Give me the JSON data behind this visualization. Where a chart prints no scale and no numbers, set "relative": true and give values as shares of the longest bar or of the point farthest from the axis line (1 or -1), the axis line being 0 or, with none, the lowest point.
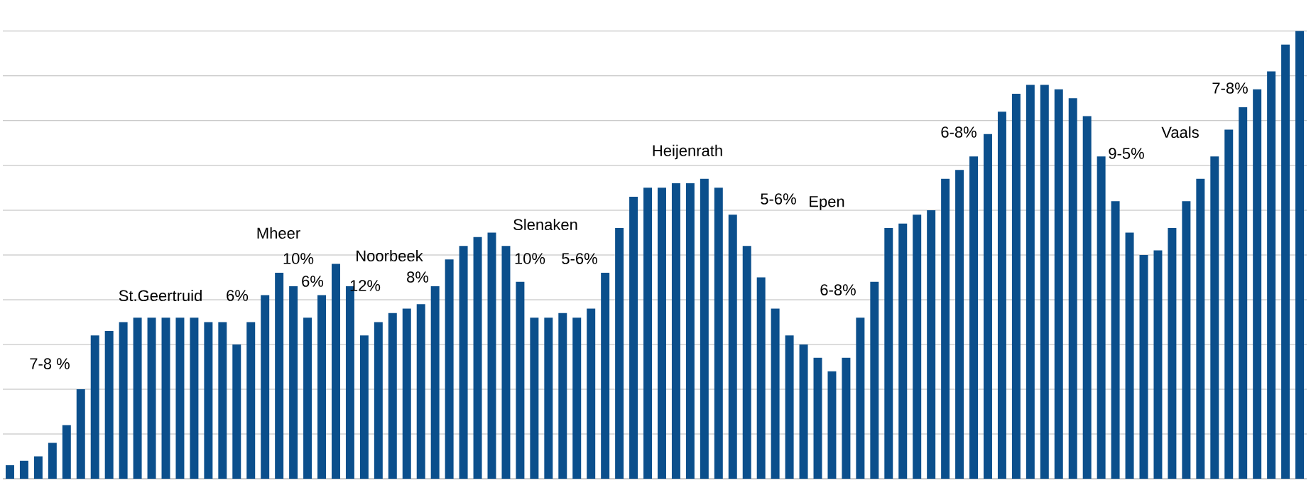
{
  "chart_data": {
    "type": "bar",
    "relative": true,
    "grid": "y",
    "color": "#0b4f8c",
    "categories": [
      null,
      null,
      null,
      null,
      null,
      null,
      null,
      null,
      null,
      null,
      null,
      null,
      null,
      null,
      null,
      null,
      null,
      null,
      null,
      null,
      null,
      null,
      null,
      null,
      null,
      null,
      null,
      null,
      null,
      null,
      null,
      null,
      null,
      null,
      null,
      null,
      null,
      null,
      null,
      null,
      null,
      null,
      null,
      null,
      null,
      null,
      null,
      null,
      null,
      null,
      null,
      null,
      null,
      null,
      null,
      null,
      null,
      null,
      null,
      null,
      null,
      null,
      null,
      null,
      null,
      null,
      null,
      null,
      null,
      null,
      null,
      null,
      null,
      null,
      null,
      null,
      null,
      null,
      null,
      null,
      null,
      null,
      null,
      null,
      null,
      null,
      null,
      null,
      null,
      null,
      null,
      null
    ],
    "values": [
      0.03,
      0.04,
      0.05,
      0.08,
      0.12,
      0.2,
      0.32,
      0.33,
      0.35,
      0.36,
      0.36,
      0.36,
      0.36,
      0.36,
      0.35,
      0.35,
      0.3,
      0.35,
      0.41,
      0.46,
      0.43,
      0.36,
      0.41,
      0.48,
      0.43,
      0.32,
      0.35,
      0.37,
      0.38,
      0.39,
      0.43,
      0.49,
      0.52,
      0.54,
      0.55,
      0.52,
      0.44,
      0.36,
      0.36,
      0.37,
      0.36,
      0.38,
      0.46,
      0.56,
      0.63,
      0.65,
      0.65,
      0.66,
      0.66,
      0.67,
      0.65,
      0.59,
      0.52,
      0.45,
      0.38,
      0.32,
      0.3,
      0.27,
      0.24,
      0.27,
      0.36,
      0.44,
      0.56,
      0.57,
      0.59,
      0.6,
      0.67,
      0.69,
      0.72,
      0.77,
      0.82,
      0.86,
      0.88,
      0.88,
      0.87,
      0.85,
      0.81,
      0.72,
      0.62,
      0.55,
      0.5,
      0.51,
      0.56,
      0.62,
      0.67,
      0.72,
      0.78,
      0.83,
      0.87,
      0.91,
      0.97,
      1.0
    ],
    "annotations": [
      "7-8 %",
      "St.Geertruid",
      "6%",
      "Mheer",
      "10%",
      "6%",
      "12%",
      "Noorbeek",
      "8%",
      "Slenaken",
      "10%",
      "5-6%",
      "Heijenrath",
      "5-6%",
      "Epen",
      "6-8%",
      "6-8%",
      "9-5%",
      "Vaals",
      "7-8%"
    ]
  }
}
